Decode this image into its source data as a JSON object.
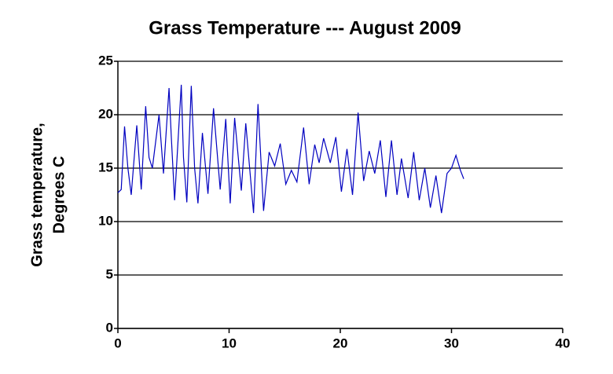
{
  "chart_data": {
    "type": "line",
    "title": "Grass Temperature --- August 2009",
    "ylabel": [
      "Grass temperature,",
      "Degrees C"
    ],
    "x": [
      0,
      0.3,
      0.6,
      0.9,
      1.2,
      1.7,
      2.1,
      2.5,
      2.8,
      3.1,
      3.7,
      4.1,
      4.6,
      4.8,
      5.1,
      5.7,
      5.9,
      6.2,
      6.6,
      6.9,
      7.2,
      7.6,
      8.1,
      8.6,
      9.2,
      9.7,
      10.1,
      10.5,
      11.1,
      11.5,
      12.2,
      12.6,
      13.1,
      13.6,
      14.1,
      14.6,
      15.1,
      15.6,
      16.1,
      16.7,
      17.2,
      17.7,
      18.1,
      18.5,
      19.1,
      19.6,
      20.1,
      20.6,
      21.1,
      21.6,
      22.1,
      22.6,
      23.1,
      23.6,
      24.1,
      24.6,
      25.1,
      25.5,
      26.1,
      26.6,
      27.1,
      27.6,
      28.1,
      28.6,
      29.1,
      29.6,
      30.0,
      30.4,
      30.8,
      31.1
    ],
    "series": [
      {
        "name": "Grass temperature",
        "color": "#0000c0",
        "values": [
          12.7,
          13,
          18.9,
          15,
          12.5,
          19,
          13,
          20.8,
          16,
          15,
          20,
          14.5,
          22.5,
          18,
          12,
          22.8,
          16,
          11.8,
          22.7,
          15,
          11.7,
          18.3,
          12.6,
          20.6,
          13,
          19.6,
          11.7,
          19.7,
          12.9,
          19.2,
          10.8,
          21,
          11,
          16.5,
          15.2,
          17.3,
          13.5,
          14.8,
          13.7,
          18.8,
          13.5,
          17.2,
          15.5,
          17.8,
          15.5,
          17.9,
          12.8,
          16.8,
          12.5,
          20.2,
          13.8,
          16.6,
          14.5,
          17.6,
          12.3,
          17.6,
          12.5,
          15.9,
          12.2,
          16.5,
          12,
          15,
          11.3,
          14.3,
          10.8,
          14.5,
          15,
          16.2,
          14.8,
          14
        ]
      }
    ],
    "xlim": [
      0,
      40
    ],
    "xticks": [
      0,
      10,
      20,
      30,
      40
    ],
    "ylim": [
      0,
      25
    ],
    "yticks": [
      0,
      5,
      10,
      15,
      20,
      25
    ],
    "grid": true
  }
}
